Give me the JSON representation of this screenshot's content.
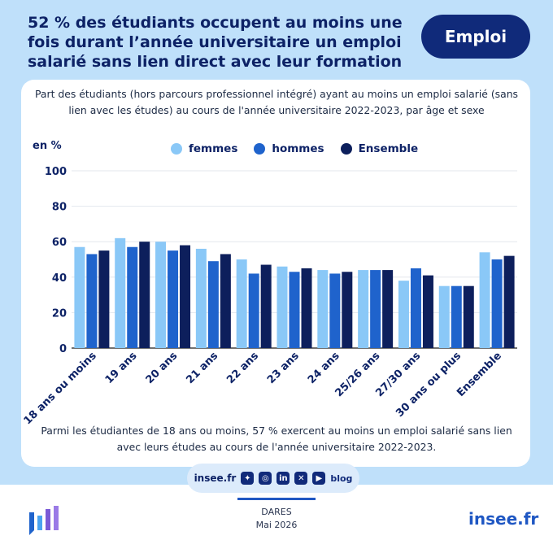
{
  "header": {
    "title": "52 % des étudiants occupent au moins une fois durant l’année universitaire un emploi salarié sans lien direct avec leur formation",
    "badge": "Emploi"
  },
  "subtitle": "Part des étudiants (hors parcours professionnel intégré) ayant au moins un emploi salarié (sans lien avec les études) au cours de l'année universitaire 2022-2023, par âge et sexe",
  "unit": "en %",
  "note": "Parmi les étudiantes de 18 ans ou moins, 57 % exercent au moins un emploi salarié sans lien avec leurs études au cours de l'année universitaire 2022-2023.",
  "social": {
    "site": "insee.fr",
    "blog": "blog",
    "icons": [
      "bluesky-icon",
      "instagram-icon",
      "linkedin-icon",
      "x-icon",
      "youtube-icon",
      "blog-icon"
    ]
  },
  "footer": {
    "source": "DARES",
    "date": "Mai 2026",
    "brand": "insee.fr"
  },
  "colors": {
    "femmes": "#8ac8f7",
    "hommes": "#1f63cc",
    "ensemble": "#0d1f5c",
    "title": "#0d2266"
  },
  "chart_data": {
    "type": "bar",
    "categories": [
      "18 ans ou moins",
      "19 ans",
      "20 ans",
      "21 ans",
      "22 ans",
      "23 ans",
      "24 ans",
      "25/26 ans",
      "27/30 ans",
      "30 ans ou plus",
      "Ensemble"
    ],
    "series": [
      {
        "name": "femmes",
        "values": [
          57,
          62,
          60,
          56,
          50,
          46,
          44,
          44,
          38,
          35,
          54
        ]
      },
      {
        "name": "hommes",
        "values": [
          53,
          57,
          55,
          49,
          42,
          43,
          42,
          44,
          45,
          35,
          50
        ]
      },
      {
        "name": "Ensemble",
        "values": [
          55,
          60,
          58,
          53,
          47,
          45,
          43,
          44,
          41,
          35,
          52
        ]
      }
    ],
    "ylim": [
      0,
      100
    ],
    "yticks": [
      0,
      20,
      40,
      60,
      80,
      100
    ],
    "legend": "top-center",
    "grid": true
  }
}
